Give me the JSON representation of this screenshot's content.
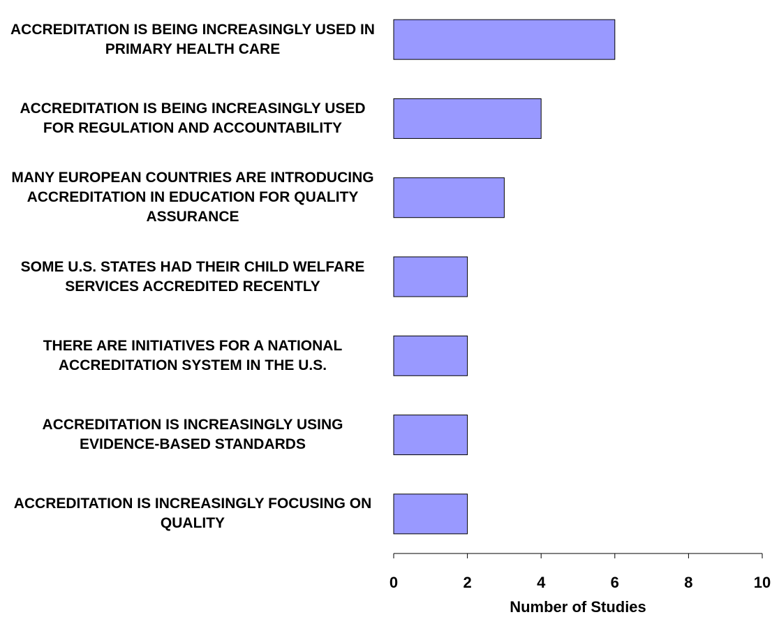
{
  "chart_data": {
    "type": "bar",
    "orientation": "horizontal",
    "categories": [
      "ACCREDITATION IS BEING INCREASINGLY USED IN PRIMARY HEALTH CARE",
      "ACCREDITATION IS BEING INCREASINGLY USED FOR REGULATION AND ACCOUNTABILITY",
      "MANY EUROPEAN COUNTRIES ARE INTRODUCING ACCREDITATION IN EDUCATION FOR QUALITY ASSURANCE",
      "SOME U.S. STATES HAD THEIR CHILD WELFARE SERVICES ACCREDITED RECENTLY",
      "THERE ARE INITIATIVES FOR A NATIONAL ACCREDITATION SYSTEM IN THE U.S.",
      "ACCREDITATION IS INCREASINGLY USING EVIDENCE-BASED STANDARDS",
      "ACCREDITATION IS INCREASINGLY FOCUSING ON QUALITY"
    ],
    "values": [
      6,
      4,
      3,
      2,
      2,
      2,
      2
    ],
    "color": "#9999ff",
    "xlabel": "Number of Studies",
    "xlim": [
      0,
      10
    ],
    "xticks": [
      0,
      2,
      4,
      6,
      8,
      10
    ]
  }
}
